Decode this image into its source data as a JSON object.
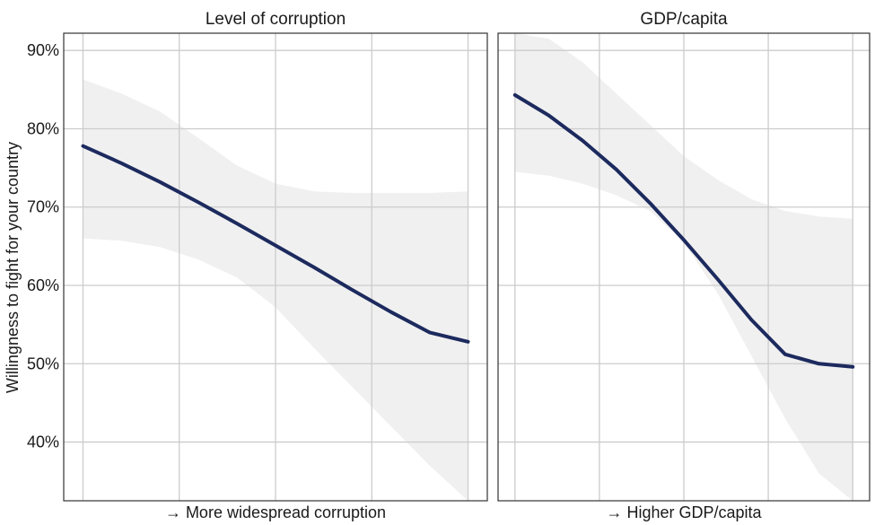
{
  "colors": {
    "line": "#1c2a5e",
    "ribbon": "#ebebeb",
    "grid": "#cccccc",
    "frame": "#333333"
  },
  "chart_data": [
    {
      "type": "line",
      "title": "Level of corruption",
      "xlabel": "→ More widespread corruption",
      "ylabel": "Willingness to fight for your country",
      "ytick_labels": [
        "40%",
        "50%",
        "60%",
        "70%",
        "80%",
        "90%"
      ],
      "y_ticks": [
        40,
        50,
        60,
        70,
        80,
        90
      ],
      "ylim": [
        32.5,
        92.2
      ],
      "xlim": [
        -0.05,
        1.05
      ],
      "x_gridlines": [
        0,
        0.25,
        0.5,
        0.75,
        1.0
      ],
      "grid": true,
      "series": [
        {
          "x": [
            0,
            0.1,
            0.2,
            0.3,
            0.4,
            0.5,
            0.6,
            0.7,
            0.8,
            0.9,
            1.0
          ],
          "values": [
            77.8,
            75.6,
            73.2,
            70.6,
            67.9,
            65.1,
            62.3,
            59.4,
            56.6,
            54.0,
            52.8
          ],
          "lower": [
            66.0,
            65.7,
            64.9,
            63.3,
            61.0,
            57.2,
            52.0,
            47.0,
            42.0,
            37.0,
            32.5
          ],
          "upper": [
            86.3,
            84.5,
            82.2,
            78.8,
            75.3,
            73.0,
            72.0,
            71.8,
            71.8,
            71.8,
            72.0
          ]
        }
      ]
    },
    {
      "type": "line",
      "title": "GDP/capita",
      "xlabel": "→ Higher GDP/capita",
      "ylabel": "",
      "ytick_labels": [],
      "y_ticks": [
        40,
        50,
        60,
        70,
        80,
        90
      ],
      "ylim": [
        32.5,
        92.2
      ],
      "xlim": [
        -0.05,
        1.05
      ],
      "x_gridlines": [
        0,
        0.25,
        0.5,
        0.75,
        1.0
      ],
      "grid": true,
      "series": [
        {
          "x": [
            0,
            0.1,
            0.2,
            0.3,
            0.4,
            0.5,
            0.6,
            0.7,
            0.8,
            0.9,
            1.0
          ],
          "values": [
            84.3,
            81.7,
            78.5,
            74.8,
            70.5,
            65.8,
            60.8,
            55.6,
            51.2,
            50.0,
            49.6
          ],
          "lower": [
            74.5,
            74.0,
            73.0,
            71.5,
            69.5,
            65.5,
            59.0,
            51.0,
            43.0,
            36.0,
            32.5
          ],
          "upper": [
            92.2,
            91.5,
            88.5,
            84.5,
            80.5,
            76.5,
            73.5,
            71.0,
            69.5,
            68.8,
            68.5
          ]
        }
      ]
    }
  ]
}
